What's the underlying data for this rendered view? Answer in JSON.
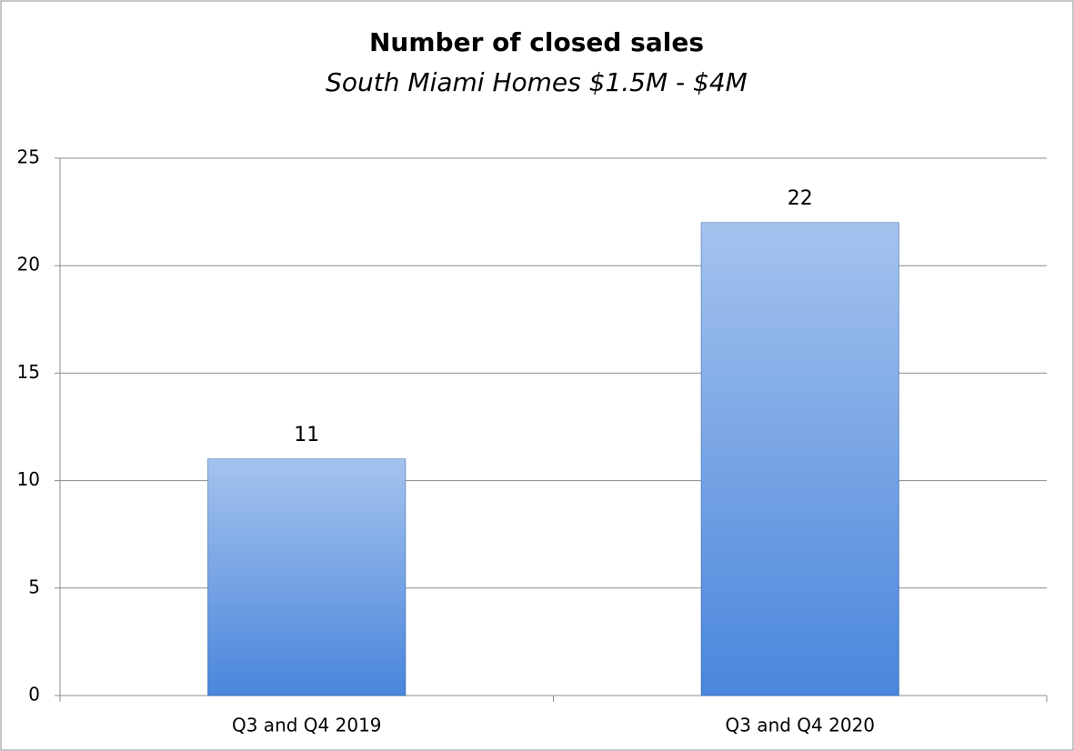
{
  "chart_data": {
    "type": "bar",
    "title": "Number of closed sales",
    "subtitle": "South Miami Homes $1.5M - $4M",
    "categories": [
      "Q3 and Q4 2019",
      "Q3 and Q4 2020"
    ],
    "values": [
      11,
      22
    ],
    "color": "#4a86dc",
    "ylim": [
      0,
      25
    ],
    "yticks": [
      0,
      5,
      10,
      15,
      20,
      25
    ],
    "grid": true
  }
}
